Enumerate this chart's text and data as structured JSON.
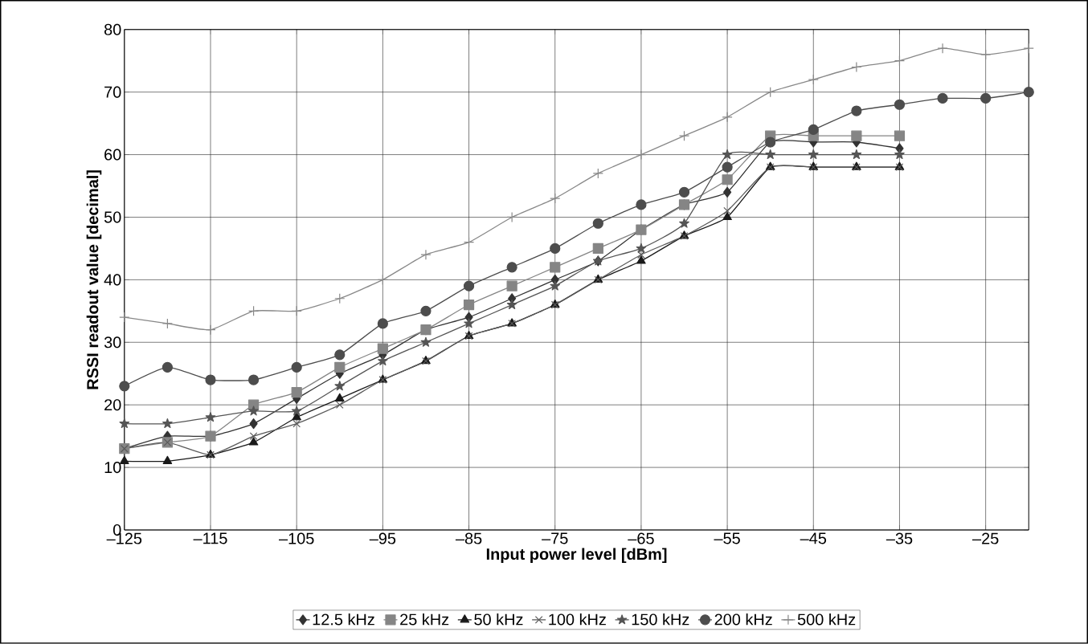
{
  "chart_data": {
    "type": "line",
    "xlabel": "Input power level [dBm]",
    "ylabel": "RSSI readout value [decimal]",
    "x": [
      -125,
      -120,
      -115,
      -110,
      -105,
      -100,
      -95,
      -90,
      -85,
      -80,
      -75,
      -70,
      -65,
      -60,
      -55,
      -50,
      -45,
      -40,
      -35,
      -30,
      -25,
      -20
    ],
    "series": [
      {
        "name": "12.5 kHz",
        "color": "#333333",
        "marker": "diamond",
        "values": [
          13,
          15,
          15,
          17,
          21,
          25,
          28,
          32,
          34,
          37,
          40,
          43,
          48,
          52,
          54,
          62,
          62,
          62,
          61,
          null,
          null,
          null
        ]
      },
      {
        "name": "25 kHz",
        "color": "#858585",
        "marker": "square",
        "values": [
          13,
          14,
          15,
          20,
          22,
          26,
          29,
          32,
          36,
          39,
          42,
          45,
          48,
          52,
          56,
          63,
          63,
          63,
          63,
          null,
          null,
          null
        ]
      },
      {
        "name": "50 kHz",
        "color": "#1a1a1a",
        "marker": "triangle",
        "values": [
          11,
          11,
          12,
          14,
          18,
          21,
          24,
          27,
          31,
          33,
          36,
          40,
          43,
          47,
          50,
          58,
          58,
          58,
          58,
          null,
          null,
          null
        ]
      },
      {
        "name": "100 kHz",
        "color": "#5a5a5a",
        "marker": "cross",
        "values": [
          13,
          14,
          12,
          15,
          17,
          20,
          24,
          27,
          31,
          33,
          36,
          40,
          44,
          47,
          51,
          58,
          58,
          58,
          58,
          null,
          null,
          null
        ]
      },
      {
        "name": "150 kHz",
        "color": "#555555",
        "marker": "star",
        "values": [
          17,
          17,
          18,
          19,
          19,
          23,
          27,
          30,
          33,
          36,
          39,
          43,
          45,
          49,
          60,
          60,
          60,
          60,
          60,
          null,
          null,
          null
        ]
      },
      {
        "name": "200 kHz",
        "color": "#4d4d4d",
        "marker": "circle",
        "values": [
          23,
          26,
          24,
          24,
          26,
          28,
          33,
          35,
          39,
          42,
          45,
          49,
          52,
          54,
          58,
          62,
          64,
          67,
          68,
          69,
          69,
          70
        ]
      },
      {
        "name": "500 kHz",
        "color": "#888888",
        "marker": "plus",
        "values": [
          34,
          33,
          32,
          35,
          35,
          37,
          40,
          44,
          46,
          50,
          53,
          57,
          60,
          63,
          66,
          70,
          72,
          74,
          75,
          77,
          76,
          77
        ]
      }
    ],
    "xlim": [
      -125,
      -20
    ],
    "ylim": [
      0,
      80
    ],
    "xticks": [
      {
        "value": -125,
        "label": "–125"
      },
      {
        "value": -115,
        "label": "–115"
      },
      {
        "value": -105,
        "label": "–105"
      },
      {
        "value": -95,
        "label": "–95"
      },
      {
        "value": -85,
        "label": "–85"
      },
      {
        "value": -75,
        "label": "–75"
      },
      {
        "value": -65,
        "label": "–65"
      },
      {
        "value": -55,
        "label": "–55"
      },
      {
        "value": -45,
        "label": "–45"
      },
      {
        "value": -35,
        "label": "–35"
      },
      {
        "value": -25,
        "label": "–25"
      }
    ],
    "yticks": [
      0,
      10,
      20,
      30,
      40,
      50,
      60,
      70,
      80
    ],
    "grid": true,
    "legend": "bottom",
    "line_style": "solid"
  }
}
